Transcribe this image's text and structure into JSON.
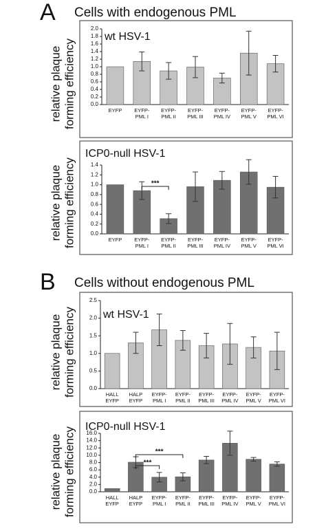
{
  "panels": [
    {
      "label": "A",
      "title": "Cells with endogenous PML"
    },
    {
      "label": "B",
      "title": "Cells without endogenous PML"
    }
  ],
  "chart_data": [
    {
      "type": "bar",
      "title": "wt HSV-1",
      "y_label": [
        "relative plaque",
        "forming efficiency"
      ],
      "color": "#c3c3c3",
      "categories": [
        [
          "EYFP"
        ],
        [
          "EYFP-",
          "PML I"
        ],
        [
          "EYFP-",
          "PML II"
        ],
        [
          "EYFP-",
          "PML III"
        ],
        [
          "EYFP-",
          "PML IV"
        ],
        [
          "EYFP-",
          "PML V"
        ],
        [
          "EYFP-",
          "PML VI"
        ]
      ],
      "values": [
        1.0,
        1.14,
        0.89,
        0.99,
        0.7,
        1.36,
        1.08
      ],
      "errors": [
        null,
        0.25,
        0.22,
        0.28,
        0.13,
        0.58,
        0.22
      ],
      "ylim": [
        0,
        2
      ],
      "yticks": [
        {
          "value": 0,
          "label": "0.0"
        },
        0.2,
        0.4,
        0.6,
        0.8,
        {
          "value": 1,
          "label": "1.0"
        },
        1.2,
        1.4,
        1.6,
        1.8,
        {
          "value": 2,
          "label": "2.0"
        }
      ],
      "annotations": []
    },
    {
      "type": "bar",
      "title": "ICP0-null HSV-1",
      "y_label": [
        "relative plaque",
        "forming efficiency"
      ],
      "color": "#707070",
      "categories": [
        [
          "EYFP"
        ],
        [
          "EYFP-",
          "PML I"
        ],
        [
          "EYFP-",
          "PML II"
        ],
        [
          "EYFP-",
          "PML III"
        ],
        [
          "EYFP-",
          "PML IV"
        ],
        [
          "EYFP-",
          "PML V"
        ],
        [
          "EYFP-",
          "PML VI"
        ]
      ],
      "values": [
        1.0,
        0.88,
        0.31,
        0.96,
        1.09,
        1.26,
        0.95
      ],
      "errors": [
        null,
        0.18,
        0.1,
        0.3,
        0.18,
        0.25,
        0.22
      ],
      "ylim": [
        0,
        1.4
      ],
      "yticks": [
        {
          "value": 0,
          "label": "0.0"
        },
        0.2,
        0.4,
        0.6,
        0.8,
        {
          "value": 1,
          "label": "1.0"
        },
        1.2,
        1.4
      ],
      "annotations": [
        "***"
      ]
    },
    {
      "type": "bar",
      "title": "wt HSV-1",
      "y_label": [
        "relative plaque",
        "forming efficiency"
      ],
      "color": "#c3c3c3",
      "categories": [
        [
          "HALL",
          "EYFP"
        ],
        [
          "HALP",
          "EYFP"
        ],
        [
          "EYFP-",
          "PML I"
        ],
        [
          "EYFP-",
          "PML II"
        ],
        [
          "EYFP-",
          "PML III"
        ],
        [
          "EYFP-",
          "PML IV"
        ],
        [
          "EYFP-",
          "PML V"
        ],
        [
          "EYFP-",
          "PML VI"
        ]
      ],
      "values": [
        1.0,
        1.3,
        1.67,
        1.37,
        1.22,
        1.27,
        1.17,
        1.07
      ],
      "errors": [
        null,
        0.3,
        0.45,
        0.28,
        0.35,
        0.58,
        0.3,
        0.53
      ],
      "ylim": [
        0,
        2.5
      ],
      "yticks": [
        {
          "value": 0,
          "label": "0.0"
        },
        0.5,
        {
          "value": 1,
          "label": "1.0"
        },
        1.5,
        {
          "value": 2,
          "label": "2.0"
        },
        2.5
      ],
      "annotations": []
    },
    {
      "type": "bar",
      "title": "ICP0-null HSV-1",
      "y_label": [
        "relative plaque",
        "forming efficiency"
      ],
      "color": "#707070",
      "categories": [
        [
          "HALL",
          "EYFP"
        ],
        [
          "HALP",
          "EYFP"
        ],
        [
          "EYFP-",
          "PML I"
        ],
        [
          "EYFP-",
          "PML II"
        ],
        [
          "EYFP-",
          "PML III"
        ],
        [
          "EYFP-",
          "PML IV"
        ],
        [
          "EYFP-",
          "PML V"
        ],
        [
          "EYFP-",
          "PML VI"
        ]
      ],
      "values": [
        0.9,
        8.1,
        4.0,
        4.1,
        8.7,
        13.3,
        8.9,
        7.6
      ],
      "errors": [
        null,
        1.5,
        1.3,
        1.1,
        1.0,
        3.3,
        0.5,
        0.6
      ],
      "ylim": [
        0,
        16
      ],
      "yticks": [
        {
          "value": 0,
          "label": "0.0"
        },
        {
          "value": 2,
          "label": "2.0"
        },
        {
          "value": 4,
          "label": "4.0"
        },
        {
          "value": 6,
          "label": "6.0"
        },
        {
          "value": 8,
          "label": "8.0"
        },
        {
          "value": 10,
          "label": "10.0"
        },
        {
          "value": 12,
          "label": "12.0"
        },
        {
          "value": 14,
          "label": "14.0"
        },
        {
          "value": 16,
          "label": "16.0"
        }
      ],
      "annotations": [
        "***",
        "***"
      ]
    }
  ]
}
